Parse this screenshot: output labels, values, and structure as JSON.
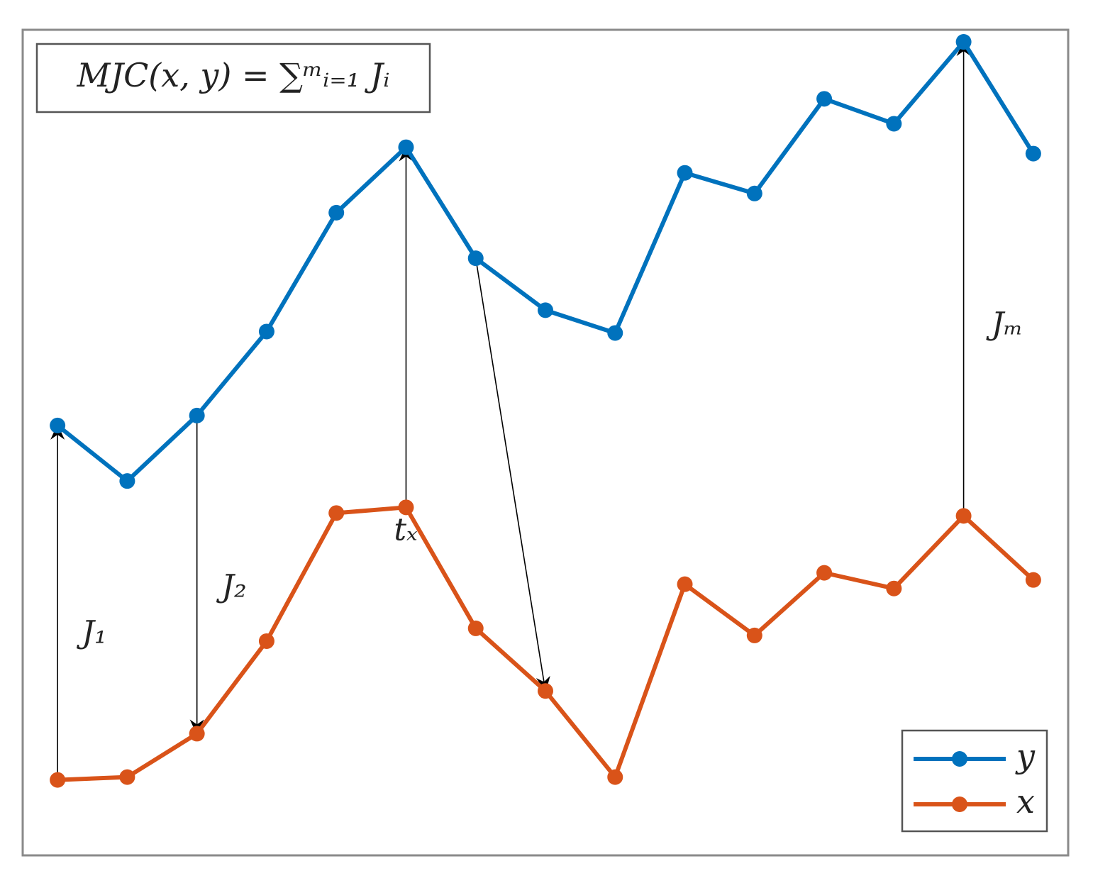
{
  "chart_data": {
    "type": "line",
    "x": [
      1,
      2,
      3,
      4,
      5,
      6,
      7,
      8,
      9,
      10,
      11,
      12,
      13,
      14,
      15
    ],
    "series": [
      {
        "name": "y",
        "color": "#0072bd",
        "values": [
          60.4,
          52.6,
          61.8,
          73.6,
          90.3,
          99.5,
          83.9,
          76.6,
          73.4,
          95.9,
          93.0,
          106.3,
          102.8,
          114.3,
          98.6
        ]
      },
      {
        "name": "x",
        "color": "#d95319",
        "values": [
          10.6,
          11.0,
          17.1,
          30.1,
          48.1,
          48.9,
          31.9,
          23.1,
          11.0,
          38.1,
          30.9,
          39.7,
          37.5,
          47.7,
          38.7
        ]
      }
    ],
    "xlim": [
      0.5,
      15.5
    ],
    "ylim": [
      0,
      116
    ],
    "annotations": [
      "MJC(x, y) = ∑ᵐᵢ₌₁ Jᵢ",
      "J₁",
      "J₂",
      "tₓ",
      "Jₘ"
    ],
    "legend": "lower right"
  }
}
